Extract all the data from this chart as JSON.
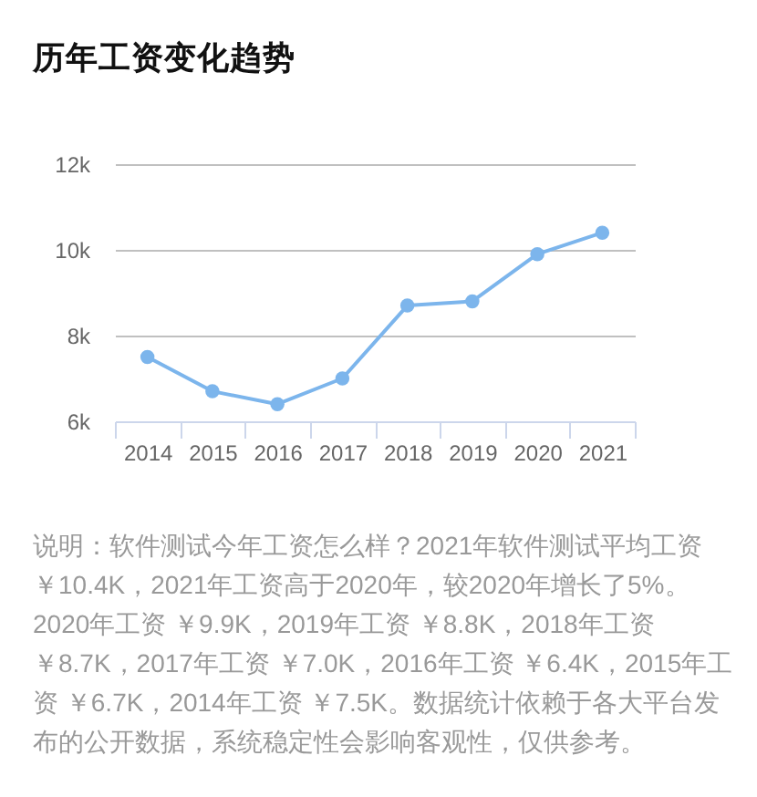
{
  "chart_data": {
    "type": "line",
    "title": "历年工资变化趋势",
    "categories": [
      "2014",
      "2015",
      "2016",
      "2017",
      "2018",
      "2019",
      "2020",
      "2021"
    ],
    "series": [
      {
        "color": "#7cb5ec",
        "values": [
          7.5,
          6.7,
          6.4,
          7.0,
          8.7,
          8.8,
          9.9,
          10.4
        ]
      }
    ],
    "ylim": [
      6,
      12
    ],
    "yticks": [
      {
        "value": 6,
        "label": "6k"
      },
      {
        "value": 8,
        "label": "8k"
      },
      {
        "value": 10,
        "label": "10k"
      },
      {
        "value": 12,
        "label": "12k"
      }
    ],
    "grid": "y",
    "legend": false,
    "marker": "circle",
    "line_style": "solid",
    "annotations": [
      "说明：软件测试今年工资怎么样？2021年软件测试平均工资￥10.4K，2021年工资高于2020年，较2020年增长了5%。2020年工资 ￥9.9K，2019年工资 ￥8.8K，2018年工资￥8.7K，2017年工资 ￥7.0K，2016年工资 ￥6.4K，2015年工资 ￥6.7K，2014年工资 ￥7.5K。数据统计依赖于各大平台发布的公开数据，系统稳定性会影响客观性，仅供参考。"
    ]
  }
}
